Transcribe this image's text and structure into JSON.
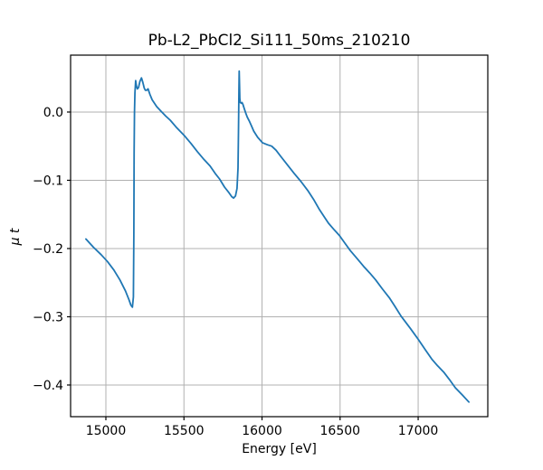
{
  "chart_data": {
    "type": "line",
    "title": "Pb-L2_PbCl2_Si111_50ms_210210",
    "xlabel": "Energy [eV]",
    "ylabel": "μ t",
    "xlim": [
      14774,
      17446
    ],
    "ylim": [
      -0.4464,
      0.0834
    ],
    "xticks": [
      15000,
      15500,
      16000,
      16500,
      17000
    ],
    "xtick_labels": [
      "15000",
      "15500",
      "16000",
      "16500",
      "17000"
    ],
    "yticks": [
      0.0,
      -0.1,
      -0.2,
      -0.3,
      -0.4
    ],
    "ytick_labels": [
      "0.0",
      "−0.1",
      "−0.2",
      "−0.3",
      "−0.4"
    ],
    "grid": true,
    "grid_color": "#b0b0b0",
    "spine_color": "#000000",
    "line_color": "#1f77b4",
    "line_width": 1.8,
    "background": "#ffffff",
    "legend": null,
    "series": [
      {
        "name": "mu_t_vs_energy",
        "points": [
          [
            14872,
            -0.186
          ],
          [
            14920,
            -0.198
          ],
          [
            14970,
            -0.209
          ],
          [
            15010,
            -0.219
          ],
          [
            15050,
            -0.231
          ],
          [
            15090,
            -0.246
          ],
          [
            15125,
            -0.262
          ],
          [
            15148,
            -0.275
          ],
          [
            15160,
            -0.283
          ],
          [
            15170,
            -0.286
          ],
          [
            15176,
            -0.271
          ],
          [
            15179,
            -0.18
          ],
          [
            15181,
            -0.06
          ],
          [
            15183,
            0.0
          ],
          [
            15186,
            0.028
          ],
          [
            15191,
            0.046
          ],
          [
            15196,
            0.038
          ],
          [
            15202,
            0.034
          ],
          [
            15209,
            0.036
          ],
          [
            15218,
            0.045
          ],
          [
            15228,
            0.05
          ],
          [
            15236,
            0.044
          ],
          [
            15246,
            0.035
          ],
          [
            15253,
            0.032
          ],
          [
            15262,
            0.032
          ],
          [
            15270,
            0.034
          ],
          [
            15282,
            0.026
          ],
          [
            15296,
            0.018
          ],
          [
            15325,
            0.008
          ],
          [
            15354,
            0.001
          ],
          [
            15384,
            -0.006
          ],
          [
            15412,
            -0.012
          ],
          [
            15450,
            -0.022
          ],
          [
            15500,
            -0.034
          ],
          [
            15545,
            -0.046
          ],
          [
            15586,
            -0.058
          ],
          [
            15630,
            -0.07
          ],
          [
            15667,
            -0.079
          ],
          [
            15700,
            -0.09
          ],
          [
            15728,
            -0.098
          ],
          [
            15760,
            -0.11
          ],
          [
            15788,
            -0.118
          ],
          [
            15806,
            -0.124
          ],
          [
            15818,
            -0.126
          ],
          [
            15830,
            -0.123
          ],
          [
            15840,
            -0.112
          ],
          [
            15846,
            -0.082
          ],
          [
            15849,
            -0.03
          ],
          [
            15852,
            0.03
          ],
          [
            15854,
            0.06
          ],
          [
            15856,
            0.038
          ],
          [
            15858,
            0.02
          ],
          [
            15861,
            0.014
          ],
          [
            15867,
            0.013
          ],
          [
            15872,
            0.014
          ],
          [
            15878,
            0.011
          ],
          [
            15886,
            0.005
          ],
          [
            15895,
            -0.001
          ],
          [
            15905,
            -0.007
          ],
          [
            15918,
            -0.013
          ],
          [
            15932,
            -0.02
          ],
          [
            15947,
            -0.028
          ],
          [
            15972,
            -0.037
          ],
          [
            16003,
            -0.045
          ],
          [
            16035,
            -0.048
          ],
          [
            16062,
            -0.05
          ],
          [
            16090,
            -0.056
          ],
          [
            16120,
            -0.065
          ],
          [
            16165,
            -0.078
          ],
          [
            16206,
            -0.09
          ],
          [
            16250,
            -0.102
          ],
          [
            16293,
            -0.115
          ],
          [
            16330,
            -0.128
          ],
          [
            16368,
            -0.143
          ],
          [
            16400,
            -0.154
          ],
          [
            16426,
            -0.163
          ],
          [
            16460,
            -0.172
          ],
          [
            16496,
            -0.181
          ],
          [
            16530,
            -0.192
          ],
          [
            16565,
            -0.203
          ],
          [
            16610,
            -0.215
          ],
          [
            16650,
            -0.226
          ],
          [
            16690,
            -0.236
          ],
          [
            16728,
            -0.246
          ],
          [
            16770,
            -0.259
          ],
          [
            16815,
            -0.272
          ],
          [
            16852,
            -0.285
          ],
          [
            16890,
            -0.299
          ],
          [
            16950,
            -0.317
          ],
          [
            17000,
            -0.333
          ],
          [
            17045,
            -0.348
          ],
          [
            17087,
            -0.362
          ],
          [
            17125,
            -0.372
          ],
          [
            17163,
            -0.381
          ],
          [
            17200,
            -0.392
          ],
          [
            17238,
            -0.404
          ],
          [
            17280,
            -0.414
          ],
          [
            17325,
            -0.425
          ]
        ]
      }
    ]
  }
}
